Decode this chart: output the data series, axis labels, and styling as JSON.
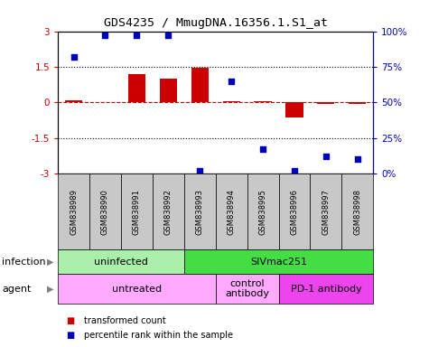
{
  "title": "GDS4235 / MmugDNA.16356.1.S1_at",
  "samples": [
    "GSM838989",
    "GSM838990",
    "GSM838991",
    "GSM838992",
    "GSM838993",
    "GSM838994",
    "GSM838995",
    "GSM838996",
    "GSM838997",
    "GSM838998"
  ],
  "red_values": [
    0.1,
    0.0,
    1.2,
    1.0,
    1.45,
    0.05,
    0.05,
    -0.65,
    -0.05,
    -0.08
  ],
  "blue_values": [
    82,
    97,
    97,
    97,
    2,
    65,
    17,
    2,
    12,
    10
  ],
  "ylim_left": [
    -3,
    3
  ],
  "ylim_right": [
    0,
    100
  ],
  "yticks_left": [
    -3,
    -1.5,
    0,
    1.5,
    3
  ],
  "ytick_labels_left": [
    "-3",
    "-1.5",
    "0",
    "1.5",
    "3"
  ],
  "yticks_right": [
    0,
    25,
    50,
    75,
    100
  ],
  "ytick_labels_right": [
    "0%",
    "25%",
    "50%",
    "75%",
    "100%"
  ],
  "infection_groups": [
    {
      "label": "uninfected",
      "start": 0,
      "end": 3,
      "color": "#aaf0aa"
    },
    {
      "label": "SIVmac251",
      "start": 4,
      "end": 9,
      "color": "#44dd44"
    }
  ],
  "agent_groups": [
    {
      "label": "untreated",
      "start": 0,
      "end": 4,
      "color": "#ffaaff"
    },
    {
      "label": "control\nantibody",
      "start": 5,
      "end": 6,
      "color": "#ffaaff"
    },
    {
      "label": "PD-1 antibody",
      "start": 7,
      "end": 9,
      "color": "#ee44ee"
    }
  ],
  "red_color": "#CC0000",
  "blue_color": "#0000BB",
  "bar_width": 0.55,
  "legend_labels": [
    "transformed count",
    "percentile rank within the sample"
  ],
  "gray_color": "#C8C8C8",
  "label_infection": "infection",
  "label_agent": "agent"
}
